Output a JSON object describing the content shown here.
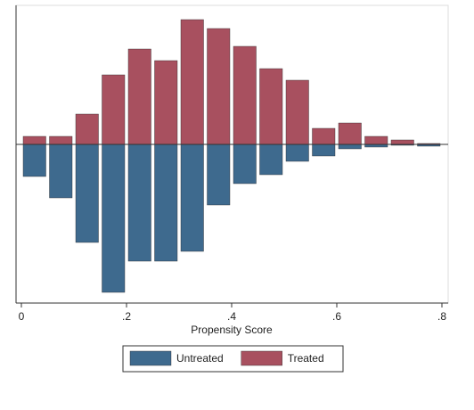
{
  "chart_data": {
    "type": "mirrored_histogram",
    "xlabel": "Propensity Score",
    "bins": [
      0,
      0.05,
      0.1,
      0.15,
      0.2,
      0.25,
      0.3,
      0.35,
      0.4,
      0.45,
      0.5,
      0.55,
      0.6,
      0.65,
      0.7,
      0.75,
      0.8
    ],
    "series": [
      {
        "name": "Untreated",
        "color": "#3e6a8e",
        "values": [
          -0.36,
          -0.6,
          -1.1,
          -1.66,
          -1.31,
          -1.31,
          -1.2,
          -0.68,
          -0.44,
          -0.34,
          -0.19,
          -0.13,
          -0.05,
          -0.03,
          -0.01,
          -0.02
        ]
      },
      {
        "name": "Treated",
        "color": "#a8505f",
        "values": [
          0.09,
          0.09,
          0.34,
          0.78,
          1.07,
          0.94,
          1.4,
          1.3,
          1.1,
          0.85,
          0.72,
          0.18,
          0.24,
          0.09,
          0.05,
          0.01
        ]
      }
    ],
    "xlim": [
      0,
      0.8
    ],
    "xticks": [
      0,
      {
        "value": 0.2,
        "label": ".2"
      },
      {
        "value": 0.4,
        "label": ".4"
      },
      {
        "value": 0.6,
        "label": ".6"
      },
      {
        "value": 0.8,
        "label": ".8"
      }
    ],
    "ylim": [
      -1.78,
      1.54
    ],
    "legend": "bottom"
  }
}
